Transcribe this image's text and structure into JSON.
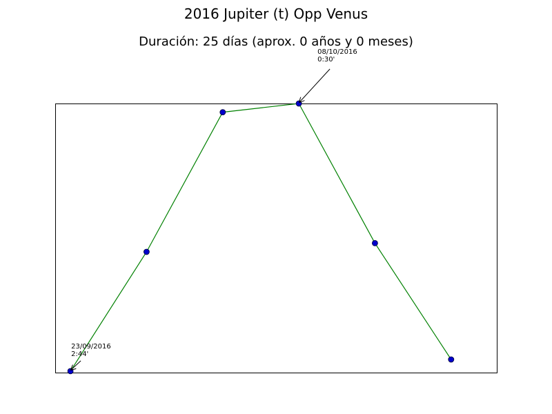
{
  "chart_data": {
    "type": "line",
    "title": "2016 Jupiter (t) Opp Venus",
    "subtitle": "Duración: 25 días (aprox. 0 años y 0 meses)",
    "xlabel": "",
    "ylabel": "",
    "grid": false,
    "x": [
      0,
      1,
      2,
      3,
      4,
      5
    ],
    "series": [
      {
        "values": [
          0.08,
          0.49,
          0.97,
          1.0,
          0.52,
          0.12
        ]
      }
    ],
    "xlim": [
      -0.2,
      5.6
    ],
    "ylim": [
      0.075,
      1.0
    ],
    "line_color": "#008000",
    "marker_color": "#0000cc",
    "annotations": [
      {
        "point_index": 0,
        "lines": [
          "23/09/2016",
          "2:44'"
        ]
      },
      {
        "point_index": 3,
        "lines": [
          "08/10/2016",
          "0:30'"
        ]
      }
    ]
  }
}
